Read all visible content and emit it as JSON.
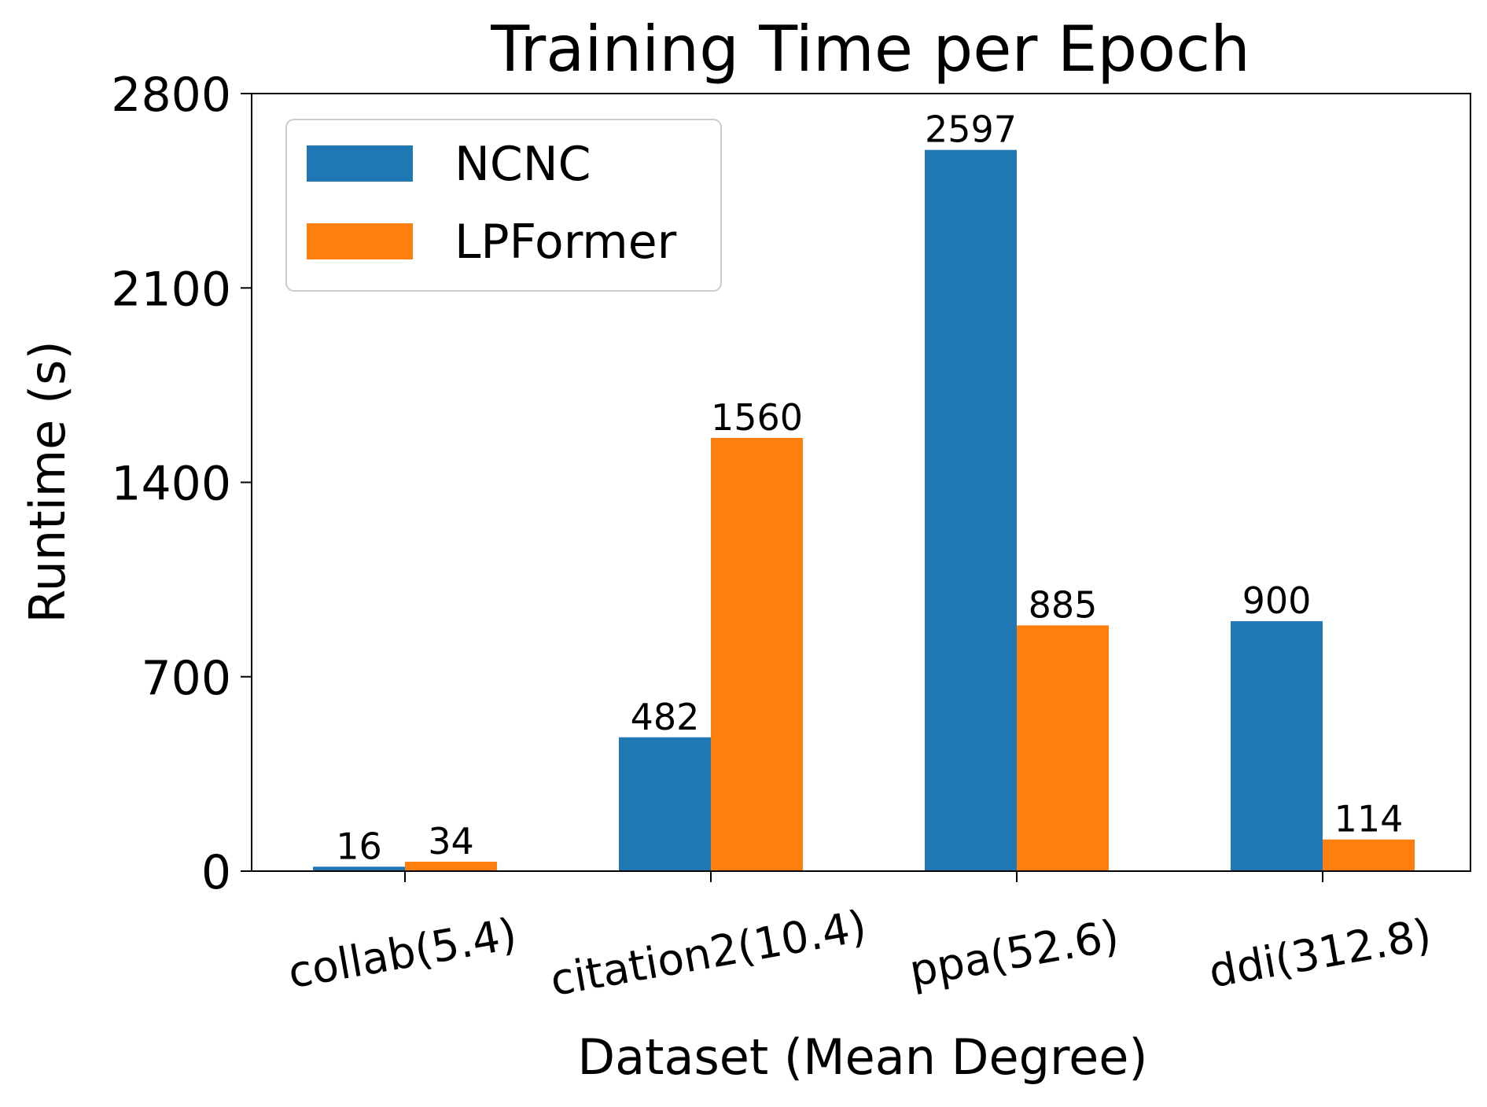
{
  "chart_data": {
    "type": "bar",
    "title": "Training Time per Epoch",
    "xlabel": "Dataset (Mean Degree)",
    "ylabel": "Runtime (s)",
    "categories": [
      "collab(5.4)",
      "citation2(10.4)",
      "ppa(52.6)",
      "ddi(312.8)"
    ],
    "series": [
      {
        "name": "NCNC",
        "color": "#1f77b4",
        "values": [
          16,
          482,
          2597,
          900
        ]
      },
      {
        "name": "LPFormer",
        "color": "#ff7f0e",
        "values": [
          34,
          1560,
          885,
          114
        ]
      }
    ],
    "data_labels": [
      [
        "16",
        "482",
        "2597",
        "900"
      ],
      [
        "34",
        "1560",
        "885",
        "114"
      ]
    ],
    "ylim": [
      0,
      2800
    ],
    "yticks": [
      0,
      700,
      1400,
      2100,
      2800
    ],
    "ytick_labels": [
      "0",
      "700",
      "1400",
      "2100",
      "2800"
    ],
    "grid": false,
    "legend_position": "top-left",
    "xtick_rotation": "rotated"
  }
}
